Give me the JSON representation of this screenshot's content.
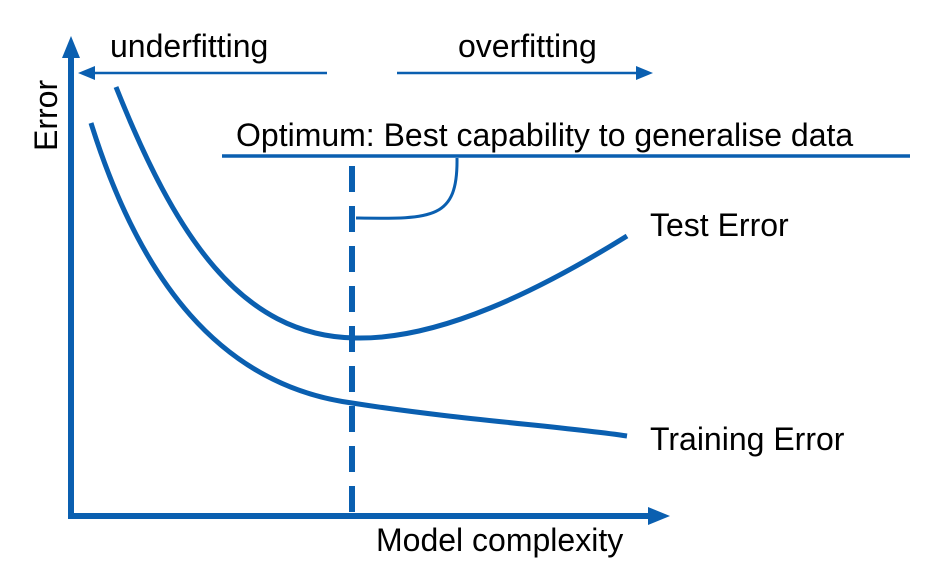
{
  "colors": {
    "line": "#0a5fb0",
    "axis": "#0a5fb0",
    "text": "#000000",
    "background": "#ffffff"
  },
  "labels": {
    "y_axis": "Error",
    "x_axis": "Model complexity",
    "underfitting": "underfitting",
    "overfitting": "overfitting",
    "optimum": "Optimum: Best capability to generalise data",
    "test_error": "Test Error",
    "training_error": "Training Error"
  }
}
